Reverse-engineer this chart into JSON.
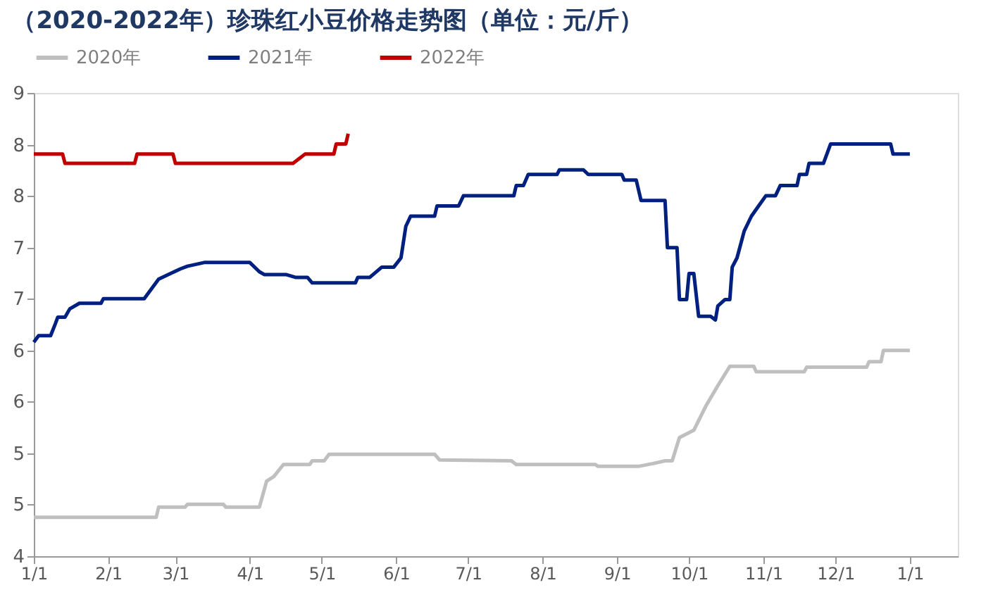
{
  "chart_data": {
    "type": "line",
    "title": "（2020-2022年）珍珠红小豆价格走势图（单位：元/斤）",
    "legend": "top",
    "grid": false,
    "marker": "none",
    "line_style": "solid",
    "xlim": [
      "2021-01-01",
      "2022-01-21"
    ],
    "xticks": [
      {
        "value": "2021-01-01",
        "label": "1/1"
      },
      {
        "value": "2021-02-01",
        "label": "2/1"
      },
      {
        "value": "2021-03-01",
        "label": "3/1"
      },
      {
        "value": "2021-04-01",
        "label": "4/1"
      },
      {
        "value": "2021-05-01",
        "label": "5/1"
      },
      {
        "value": "2021-06-01",
        "label": "6/1"
      },
      {
        "value": "2021-07-01",
        "label": "7/1"
      },
      {
        "value": "2021-08-01",
        "label": "8/1"
      },
      {
        "value": "2021-09-01",
        "label": "9/1"
      },
      {
        "value": "2021-10-01",
        "label": "10/1"
      },
      {
        "value": "2021-11-01",
        "label": "11/1"
      },
      {
        "value": "2021-12-01",
        "label": "12/1"
      },
      {
        "value": "2022-01-01",
        "label": "1/1"
      }
    ],
    "ylim": [
      4,
      9
    ],
    "yticks": [
      {
        "value": 4,
        "label": "4"
      },
      {
        "value": 4.56,
        "label": "5"
      },
      {
        "value": 5.11,
        "label": "5"
      },
      {
        "value": 5.67,
        "label": "6"
      },
      {
        "value": 6.22,
        "label": "6"
      },
      {
        "value": 6.78,
        "label": "7"
      },
      {
        "value": 7.33,
        "label": "7"
      },
      {
        "value": 7.89,
        "label": "8"
      },
      {
        "value": 8.44,
        "label": "8"
      },
      {
        "value": 9,
        "label": "9"
      }
    ],
    "series": [
      {
        "name": "2020年",
        "color": "#bfbfbf",
        "x": [
          "2021-01-01",
          "2021-02-21",
          "2021-02-22",
          "2021-03-05",
          "2021-03-06",
          "2021-03-21",
          "2021-03-22",
          "2021-04-05",
          "2021-04-08",
          "2021-04-11",
          "2021-04-15",
          "2021-04-26",
          "2021-04-27",
          "2021-05-02",
          "2021-05-04",
          "2021-06-17",
          "2021-06-19",
          "2021-07-19",
          "2021-07-21",
          "2021-08-23",
          "2021-08-24",
          "2021-09-10",
          "2021-09-16",
          "2021-09-21",
          "2021-09-24",
          "2021-09-27",
          "2021-10-03",
          "2021-10-08",
          "2021-10-13",
          "2021-10-18",
          "2021-10-28",
          "2021-10-29",
          "2021-11-18",
          "2021-11-19",
          "2021-12-14",
          "2021-12-15",
          "2021-12-20",
          "2021-12-21",
          "2022-01-01"
        ],
        "values": [
          4.42,
          4.42,
          4.53,
          4.53,
          4.56,
          4.56,
          4.53,
          4.53,
          4.81,
          4.86,
          4.99,
          4.99,
          5.03,
          5.03,
          5.1,
          5.1,
          5.04,
          5.03,
          4.99,
          4.99,
          4.97,
          4.97,
          5.0,
          5.03,
          5.03,
          5.28,
          5.36,
          5.62,
          5.84,
          6.05,
          6.05,
          5.99,
          5.99,
          6.04,
          6.04,
          6.1,
          6.1,
          6.22,
          6.22
        ]
      },
      {
        "name": "2021年",
        "color": "#002080",
        "x": [
          "2021-01-01",
          "2021-01-03",
          "2021-01-08",
          "2021-01-10",
          "2021-01-11",
          "2021-01-14",
          "2021-01-16",
          "2021-01-20",
          "2021-01-29",
          "2021-01-30",
          "2021-02-16",
          "2021-02-22",
          "2021-02-26",
          "2021-03-03",
          "2021-03-06",
          "2021-03-13",
          "2021-04-01",
          "2021-04-05",
          "2021-04-07",
          "2021-04-16",
          "2021-04-20",
          "2021-04-25",
          "2021-04-27",
          "2021-05-15",
          "2021-05-16",
          "2021-05-21",
          "2021-05-26",
          "2021-05-31",
          "2021-06-03",
          "2021-06-05",
          "2021-06-07",
          "2021-06-17",
          "2021-06-18",
          "2021-06-27",
          "2021-06-29",
          "2021-07-20",
          "2021-07-21",
          "2021-07-24",
          "2021-07-26",
          "2021-08-07",
          "2021-08-08",
          "2021-08-18",
          "2021-08-20",
          "2021-09-03",
          "2021-09-04",
          "2021-09-09",
          "2021-09-11",
          "2021-09-21",
          "2021-09-22",
          "2021-09-26",
          "2021-09-27",
          "2021-09-30",
          "2021-10-01",
          "2021-10-03",
          "2021-10-05",
          "2021-10-10",
          "2021-10-12",
          "2021-10-13",
          "2021-10-16",
          "2021-10-18",
          "2021-10-19",
          "2021-10-21",
          "2021-10-24",
          "2021-10-27",
          "2021-10-30",
          "2021-11-02",
          "2021-11-06",
          "2021-11-08",
          "2021-11-15",
          "2021-11-16",
          "2021-11-19",
          "2021-11-20",
          "2021-11-26",
          "2021-11-29",
          "2021-12-24",
          "2021-12-25",
          "2022-01-01"
        ],
        "values": [
          6.31,
          6.38,
          6.38,
          6.51,
          6.58,
          6.58,
          6.67,
          6.73,
          6.73,
          6.78,
          6.78,
          6.99,
          7.04,
          7.1,
          7.13,
          7.17,
          7.17,
          7.07,
          7.04,
          7.04,
          7.01,
          7.01,
          6.95,
          6.95,
          7.01,
          7.01,
          7.12,
          7.12,
          7.22,
          7.56,
          7.67,
          7.67,
          7.78,
          7.78,
          7.89,
          7.89,
          8.0,
          8.0,
          8.12,
          8.12,
          8.17,
          8.17,
          8.12,
          8.12,
          8.06,
          8.06,
          7.84,
          7.84,
          7.33,
          7.33,
          6.77,
          6.77,
          7.05,
          7.05,
          6.59,
          6.59,
          6.55,
          6.7,
          6.77,
          6.77,
          7.12,
          7.22,
          7.51,
          7.67,
          7.78,
          7.89,
          7.89,
          8.0,
          8.0,
          8.12,
          8.12,
          8.24,
          8.24,
          8.45,
          8.45,
          8.34,
          8.34
        ]
      },
      {
        "name": "2022年",
        "color": "#c00000",
        "x": [
          "2021-01-01",
          "2021-01-13",
          "2021-01-14",
          "2021-02-12",
          "2021-02-13",
          "2021-02-28",
          "2021-03-01",
          "2021-04-19",
          "2021-04-21",
          "2021-04-24",
          "2021-05-06",
          "2021-05-07",
          "2021-05-11",
          "2021-05-12"
        ],
        "values": [
          8.34,
          8.34,
          8.24,
          8.24,
          8.34,
          8.34,
          8.24,
          8.24,
          8.28,
          8.34,
          8.34,
          8.45,
          8.45,
          8.56
        ]
      }
    ]
  }
}
